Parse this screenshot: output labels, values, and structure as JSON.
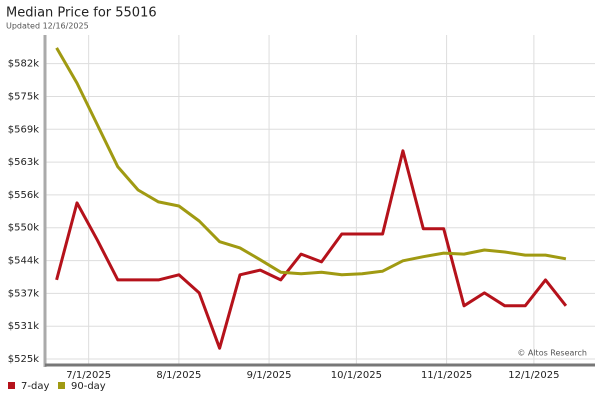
{
  "chart_data": {
    "type": "line",
    "title": "Median Price for 55016",
    "subtitle": "Updated 12/16/2025",
    "watermark": "© Altos Research",
    "x": [
      "2025-06-20",
      "2025-06-27",
      "2025-07-04",
      "2025-07-11",
      "2025-07-18",
      "2025-07-25",
      "2025-08-01",
      "2025-08-08",
      "2025-08-15",
      "2025-08-22",
      "2025-08-29",
      "2025-09-05",
      "2025-09-12",
      "2025-09-19",
      "2025-09-26",
      "2025-10-03",
      "2025-10-10",
      "2025-10-17",
      "2025-10-24",
      "2025-10-31",
      "2025-11-07",
      "2025-11-14",
      "2025-11-21",
      "2025-11-28",
      "2025-12-05",
      "2025-12-12"
    ],
    "xlim": [
      "2025-06-16",
      "2025-12-22"
    ],
    "xticks": [
      {
        "value": "2025-07-01",
        "label": "7/1/2025"
      },
      {
        "value": "2025-08-01",
        "label": "8/1/2025"
      },
      {
        "value": "2025-09-01",
        "label": "9/1/2025"
      },
      {
        "value": "2025-10-01",
        "label": "10/1/2025"
      },
      {
        "value": "2025-11-01",
        "label": "11/1/2025"
      },
      {
        "value": "2025-12-01",
        "label": "12/1/2025"
      }
    ],
    "ylim": [
      523840,
      587700
    ],
    "yticks": [
      {
        "value": 525000,
        "label": "$525k"
      },
      {
        "value": 531350,
        "label": "$531k"
      },
      {
        "value": 537700,
        "label": "$537k"
      },
      {
        "value": 544050,
        "label": "$544k"
      },
      {
        "value": 550400,
        "label": "$550k"
      },
      {
        "value": 556750,
        "label": "$556k"
      },
      {
        "value": 563100,
        "label": "$563k"
      },
      {
        "value": 569450,
        "label": "$569k"
      },
      {
        "value": 575800,
        "label": "$575k"
      },
      {
        "value": 582150,
        "label": "$582k"
      }
    ],
    "grid": true,
    "legend": "bottom-left",
    "series": [
      {
        "name": "7-day",
        "color": "#b5121b",
        "values": [
          540300,
          555200,
          548000,
          540300,
          540300,
          540300,
          541300,
          537800,
          527100,
          541300,
          542200,
          540300,
          545300,
          543800,
          549200,
          549200,
          549200,
          565300,
          550200,
          550200,
          535300,
          537800,
          535300,
          535300,
          540300,
          535300
        ]
      },
      {
        "name": "90-day",
        "color": "#a09a12",
        "values": [
          585200,
          578400,
          570300,
          562200,
          557700,
          555400,
          554600,
          551700,
          547700,
          546500,
          544200,
          541800,
          541500,
          541800,
          541300,
          541500,
          542000,
          544000,
          544800,
          545500,
          545300,
          546100,
          545700,
          545100,
          545100,
          544400
        ]
      }
    ]
  }
}
